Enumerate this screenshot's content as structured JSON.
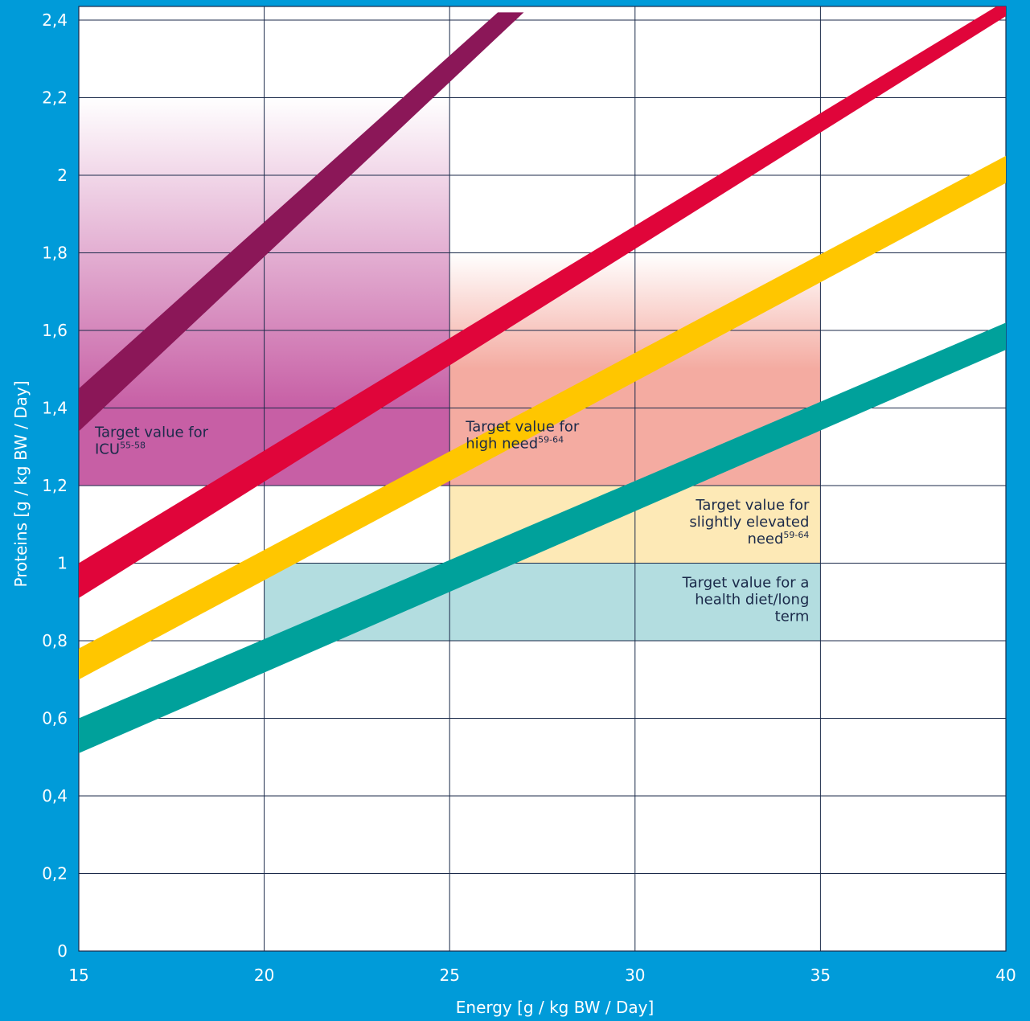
{
  "chart_data": {
    "type": "line",
    "xlabel": "Energy [g / kg BW / Day]",
    "ylabel": "Proteins [g / kg BW / Day]",
    "xlim": [
      15,
      40
    ],
    "ylim": [
      0,
      2.42
    ],
    "x_ticks": [
      "15",
      "20",
      "25",
      "30",
      "35",
      "40"
    ],
    "y_ticks": [
      "0",
      "0,2",
      "0,4",
      "0,6",
      "0,8",
      "1",
      "1,2",
      "1,4",
      "1,6",
      "1,8",
      "2",
      "2,2",
      "2,4"
    ],
    "grid": true,
    "series": [
      {
        "color": "#8b1758",
        "low": [
          [
            15,
            1.34
          ],
          [
            27,
            2.42
          ]
        ],
        "high": [
          [
            15,
            1.45
          ],
          [
            26.3,
            2.42
          ]
        ]
      },
      {
        "color": "#e0053a",
        "low": [
          [
            15,
            0.91
          ],
          [
            40,
            2.41
          ]
        ],
        "high": [
          [
            15,
            1.0
          ],
          [
            40,
            2.45
          ]
        ]
      },
      {
        "color": "#ffc600",
        "low": [
          [
            15,
            0.7
          ],
          [
            40,
            1.98
          ]
        ],
        "high": [
          [
            15,
            0.78
          ],
          [
            40,
            2.05
          ]
        ]
      },
      {
        "color": "#00a19b",
        "low": [
          [
            15,
            0.51
          ],
          [
            40,
            1.55
          ]
        ],
        "high": [
          [
            15,
            0.6
          ],
          [
            40,
            1.62
          ]
        ]
      }
    ],
    "regions": [
      {
        "x": [
          15,
          25
        ],
        "y": [
          1.2,
          2.2
        ],
        "fade_from": 1.4,
        "color": "#c75fa5",
        "label": [
          "Target value for",
          "ICU"
        ],
        "sup": "55-58",
        "align": "left"
      },
      {
        "x": [
          25,
          35
        ],
        "y": [
          1.2,
          1.8
        ],
        "fade_from": 1.5,
        "color": "#f4aba1",
        "label": [
          "Target value for",
          "high need"
        ],
        "sup": "59-64",
        "align": "left"
      },
      {
        "x": [
          25,
          35
        ],
        "y": [
          1.0,
          1.2
        ],
        "color": "#fde9b6",
        "label": [
          "Target value for",
          "slightly elevated",
          "need"
        ],
        "sup": "59-64",
        "align": "right"
      },
      {
        "x": [
          20,
          35
        ],
        "y": [
          0.8,
          1.0
        ],
        "color": "#b3dde0",
        "label": [
          "Target value for a",
          "health diet/long",
          "term"
        ],
        "sup": "",
        "align": "right"
      }
    ]
  }
}
